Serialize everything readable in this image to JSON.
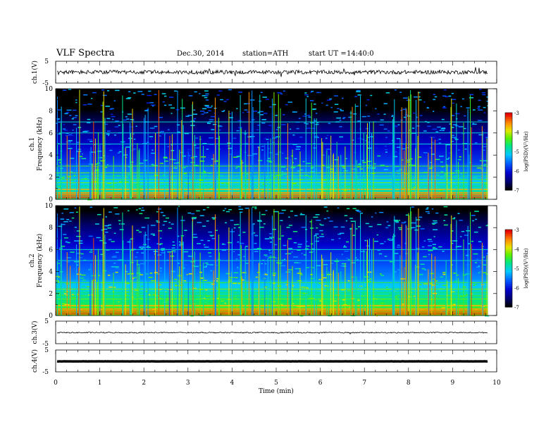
{
  "header": {
    "title": "VLF  Spectra",
    "date": "Dec.30, 2014",
    "station": "station=ATH",
    "start_label": "start  UT  =",
    "start_time": "14:40:0"
  },
  "chart_data": {
    "type": "spectrogram",
    "xlabel": "Time  (min)",
    "xlim": [
      0,
      10
    ],
    "x_ticks": [
      "0",
      "1",
      "2",
      "3",
      "4",
      "5",
      "6",
      "7",
      "8",
      "9",
      "10"
    ],
    "data_end_min": 9.8,
    "panels": [
      {
        "id": "ch1-wave",
        "type": "line",
        "ylabel": "ch.1(V)",
        "ylim": [
          -5,
          5
        ],
        "y_ticks": [
          "5",
          "-5"
        ],
        "baseline": 0.0,
        "noise_amp": 0.3,
        "spike_density": "high"
      },
      {
        "id": "ch1-spec",
        "type": "heatmap",
        "ylabel_line1": "ch.1",
        "ylabel_line2": "Frequency  (kHz)",
        "ylim": [
          0,
          10
        ],
        "y_ticks": [
          "0",
          "2",
          "4",
          "6",
          "8",
          "10"
        ],
        "colorbar": {
          "label": "log(PSD)(V²/Hz)",
          "range": [
            -7,
            -3
          ],
          "ticks": [
            "-3",
            "-4",
            "-5",
            "-6",
            "-7"
          ]
        },
        "persistent_lines_khz": [
          0.15,
          0.3,
          0.45,
          0.6,
          0.9,
          1.2,
          1.5,
          1.8,
          2.1,
          2.4,
          3.0,
          5.0,
          6.0,
          7.0
        ],
        "background_level": -6.2
      },
      {
        "id": "ch2-spec",
        "type": "heatmap",
        "ylabel_line1": "ch.2",
        "ylabel_line2": "Frequency  (kHz)",
        "ylim": [
          0,
          10
        ],
        "y_ticks": [
          "0",
          "2",
          "4",
          "6",
          "8",
          "10"
        ],
        "colorbar": {
          "label": "log(PSD)(V²/Hz)",
          "range": [
            -7,
            -3
          ],
          "ticks": [
            "-3",
            "-4",
            "-5",
            "-6",
            "-7"
          ]
        },
        "persistent_lines_khz": [
          0.15,
          0.3,
          0.45,
          0.6,
          0.9,
          1.2,
          1.5,
          1.8,
          2.1,
          2.4,
          3.0,
          5.0,
          6.0
        ],
        "background_level": -5.8
      },
      {
        "id": "ch3-wave",
        "type": "line",
        "ylabel": "ch.3(V)",
        "ylim": [
          -5,
          5
        ],
        "y_ticks": [
          "5",
          "-5"
        ],
        "baseline": -0.1,
        "noise_amp": 0.08,
        "spike_density": "low"
      },
      {
        "id": "ch4-wave",
        "type": "line",
        "ylabel": "ch.4(V)",
        "ylim": [
          -5,
          5
        ],
        "y_ticks": [
          "5",
          "-5"
        ],
        "baseline": -0.2,
        "noise_amp": 0.03,
        "spike_density": "none",
        "thick": true
      }
    ]
  }
}
